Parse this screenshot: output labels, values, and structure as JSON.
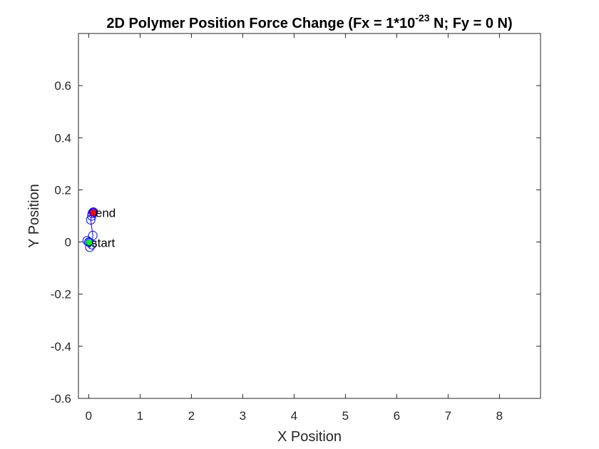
{
  "chart_data": {
    "type": "scatter",
    "title": {
      "prefix": "2D Polymer Position Force Change (Fx = 1*10",
      "superscript": "-23",
      "suffix": " N; Fy = 0 N)"
    },
    "xlabel": "X Position",
    "ylabel": "Y Position",
    "xlim": [
      -0.2,
      8.8
    ],
    "ylim": [
      -0.6,
      0.8
    ],
    "xticks": [
      0,
      1,
      2,
      3,
      4,
      5,
      6,
      7,
      8
    ],
    "yticks": [
      -0.6,
      -0.4,
      -0.2,
      0,
      0.2,
      0.4,
      0.6
    ],
    "xtick_labels": [
      "0",
      "1",
      "2",
      "3",
      "4",
      "5",
      "6",
      "7",
      "8"
    ],
    "ytick_labels": [
      "-0.6",
      "-0.4",
      "-0.2",
      "0",
      "0.2",
      "0.4",
      "0.6"
    ],
    "grid": false,
    "series": [
      {
        "marker": "circle",
        "color": "#0000ff",
        "x": [
          0,
          -0.03,
          0.02,
          0.06,
          0.08,
          0.04,
          0.06,
          0.07,
          0.09
        ],
        "y": [
          0,
          0.005,
          -0.02,
          -0.01,
          0.025,
          0.085,
          0.1,
          0.11,
          0.115
        ]
      }
    ],
    "start_point": {
      "x": 0.01,
      "y": 0.0,
      "color": "#00ff00"
    },
    "end_point": {
      "x": 0.09,
      "y": 0.115,
      "color": "#ff0000"
    },
    "annotations": [
      {
        "text": "start",
        "x": 0.01,
        "y": 0.0
      },
      {
        "text": "end",
        "x": 0.09,
        "y": 0.115
      }
    ],
    "colors": {
      "axes": "#262626",
      "line": "#0000ff"
    }
  }
}
